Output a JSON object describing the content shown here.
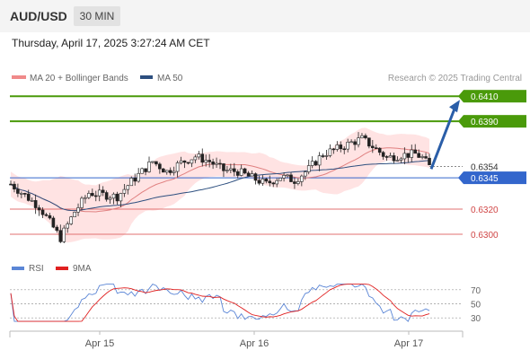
{
  "header": {
    "pair": "AUD/USD",
    "timeframe": "30 MIN"
  },
  "timestamp": "Thursday, April 17, 2025 3:27:24 AM CET",
  "legend": {
    "bb_label": "MA 20 + Bollinger Bands",
    "ma50_label": "MA 50",
    "copyright": "Research © 2025 Trading Central"
  },
  "rsi_legend": {
    "rsi_label": "RSI",
    "ma9_label": "9MA"
  },
  "colors": {
    "green": "#4a9a0a",
    "blue": "#3366cc",
    "red": "#d04545",
    "arrow": "#2a5ea8",
    "bb": "#ffd0d0"
  },
  "chart_data": {
    "type": "candlestick",
    "x_ticks": [
      "Apr 15",
      "Apr 16",
      "Apr 17"
    ],
    "y_range": [
      0.6285,
      0.6418
    ],
    "levels": [
      {
        "value": 0.641,
        "label": "0.6410",
        "kind": "resistance"
      },
      {
        "value": 0.639,
        "label": "0.6390",
        "kind": "resistance"
      },
      {
        "value": 0.6345,
        "label": "0.6345",
        "kind": "support"
      },
      {
        "value": 0.632,
        "label": "0.6320",
        "kind": "target"
      },
      {
        "value": 0.63,
        "label": "0.6300",
        "kind": "target"
      }
    ],
    "last_price": {
      "value": 0.6354,
      "label": "0.6354"
    },
    "forecast_arrow": {
      "from": 0.6352,
      "to": 0.641
    },
    "rsi": {
      "ticks": [
        70,
        50,
        30
      ],
      "range": [
        20,
        80
      ]
    }
  }
}
